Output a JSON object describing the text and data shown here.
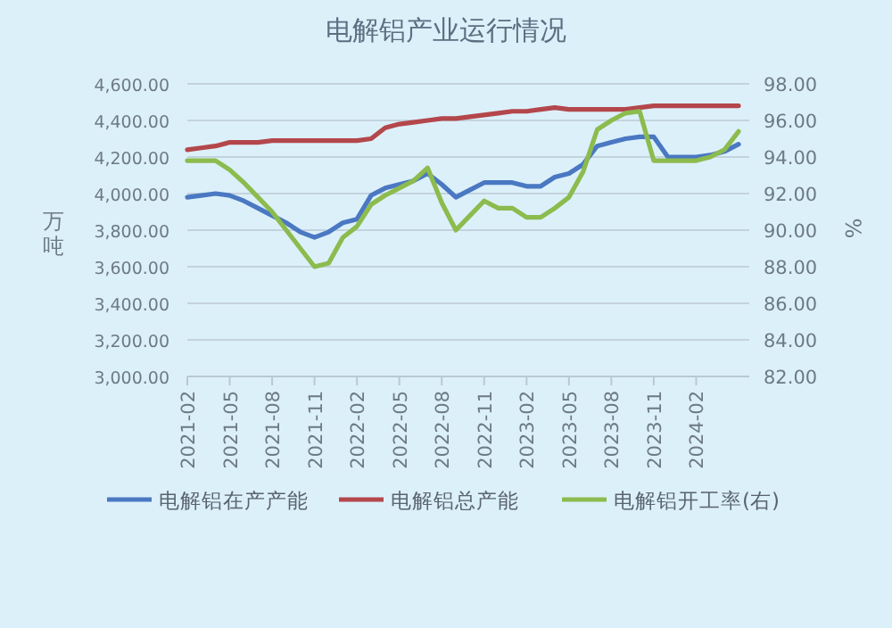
{
  "chart_data": {
    "type": "line",
    "title": "电解铝产业运行情况",
    "ylabel": "万吨",
    "y2label": "%",
    "categories": [
      "2021-02",
      null,
      null,
      "2021-05",
      null,
      null,
      "2021-08",
      null,
      null,
      "2021-11",
      null,
      null,
      "2022-02",
      null,
      null,
      "2022-05",
      null,
      null,
      "2022-08",
      null,
      null,
      "2022-11",
      null,
      null,
      "2023-02",
      null,
      null,
      "2023-05",
      null,
      null,
      "2023-08",
      null,
      null,
      "2023-11",
      null,
      null,
      "2024-02",
      null,
      null,
      null
    ],
    "series": [
      {
        "name": "电解铝在产产能",
        "color": "#4a78c2",
        "values": [
          3980,
          3990,
          4000,
          3990,
          3960,
          3920,
          3880,
          3840,
          3790,
          3760,
          3790,
          3840,
          3860,
          3990,
          4030,
          4050,
          4070,
          4110,
          4050,
          3980,
          4020,
          4060,
          4060,
          4060,
          4040,
          4040,
          4090,
          4110,
          4160,
          4260,
          4280,
          4300,
          4310,
          4310,
          4200,
          4200,
          4200,
          4210,
          4230,
          4270
        ]
      },
      {
        "name": "电解铝总产能",
        "color": "#b3474b",
        "values": [
          4240,
          4250,
          4260,
          4280,
          4280,
          4280,
          4290,
          4290,
          4290,
          4290,
          4290,
          4290,
          4290,
          4300,
          4360,
          4380,
          4390,
          4400,
          4410,
          4410,
          4420,
          4430,
          4440,
          4450,
          4450,
          4460,
          4470,
          4460,
          4460,
          4460,
          4460,
          4460,
          4470,
          4480,
          4480,
          4480,
          4480,
          4480,
          4480,
          4480
        ]
      },
      {
        "name": "电解铝开工率(右)",
        "color": "#8cbb4e",
        "axis": "y2",
        "values": [
          93.8,
          93.8,
          93.8,
          93.3,
          92.6,
          91.8,
          91.0,
          90.0,
          89.0,
          88.0,
          88.2,
          89.6,
          90.2,
          91.4,
          91.9,
          92.3,
          92.7,
          93.4,
          91.5,
          90.0,
          90.8,
          91.6,
          91.2,
          91.2,
          90.7,
          90.7,
          91.2,
          91.8,
          93.2,
          95.5,
          96.0,
          96.4,
          96.5,
          93.8,
          93.8,
          93.8,
          93.8,
          94.0,
          94.4,
          95.4
        ]
      }
    ],
    "ylim": [
      3000,
      4600
    ],
    "yticks": [
      {
        "value": 3000,
        "label": "3,000.00"
      },
      {
        "value": 3200,
        "label": "3,200.00"
      },
      {
        "value": 3400,
        "label": "3,400.00"
      },
      {
        "value": 3600,
        "label": "3,600.00"
      },
      {
        "value": 3800,
        "label": "3,800.00"
      },
      {
        "value": 4000,
        "label": "4,000.00"
      },
      {
        "value": 4200,
        "label": "4,200.00"
      },
      {
        "value": 4400,
        "label": "4,400.00"
      },
      {
        "value": 4600,
        "label": "4,600.00"
      }
    ],
    "y2lim": [
      82,
      98
    ],
    "y2ticks": [
      {
        "value": 82,
        "label": "82.00"
      },
      {
        "value": 84,
        "label": "84.00"
      },
      {
        "value": 86,
        "label": "86.00"
      },
      {
        "value": 88,
        "label": "88.00"
      },
      {
        "value": 90,
        "label": "90.00"
      },
      {
        "value": 92,
        "label": "92.00"
      },
      {
        "value": 94,
        "label": "94.00"
      },
      {
        "value": 96,
        "label": "96.00"
      },
      {
        "value": 98,
        "label": "98.00"
      }
    ],
    "grid": "y",
    "legend": "bottom"
  }
}
